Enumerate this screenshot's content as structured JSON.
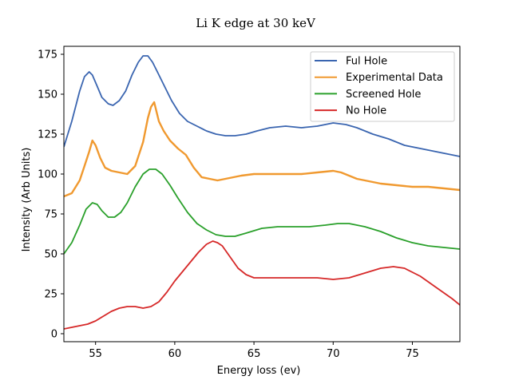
{
  "chart_data": {
    "type": "line",
    "title": "Li K edge at 30 keV",
    "xlabel": "Energy loss (ev)",
    "ylabel": "Intensity (Arb Units)",
    "xlim": [
      53,
      78
    ],
    "ylim": [
      -5,
      180
    ],
    "xticks": [
      55,
      60,
      65,
      70,
      75
    ],
    "yticks": [
      0,
      25,
      50,
      75,
      100,
      125,
      150,
      175
    ],
    "grid": false,
    "legend_position": "top-right",
    "series": [
      {
        "name": "Ful Hole",
        "color": "#3a65b0",
        "x": [
          53.0,
          53.5,
          54.0,
          54.3,
          54.6,
          54.8,
          55.1,
          55.4,
          55.8,
          56.1,
          56.5,
          56.9,
          57.3,
          57.7,
          58.0,
          58.3,
          58.6,
          58.9,
          59.3,
          59.8,
          60.3,
          60.8,
          61.4,
          62.0,
          62.6,
          63.2,
          63.8,
          64.5,
          65.2,
          66.0,
          67.0,
          68.0,
          69.0,
          70.0,
          70.8,
          71.5,
          72.5,
          73.5,
          74.5,
          75.5,
          76.5,
          77.5,
          78.0
        ],
        "y": [
          117,
          133,
          152,
          161,
          164,
          162,
          155,
          148,
          144,
          143,
          146,
          152,
          162,
          170,
          174,
          174,
          170,
          164,
          156,
          146,
          138,
          133,
          130,
          127,
          125,
          124,
          124,
          125,
          127,
          129,
          130,
          129,
          130,
          132,
          131,
          129,
          125,
          122,
          118,
          116,
          114,
          112,
          111
        ]
      },
      {
        "name": "Experimental Data",
        "color": "#f0992f",
        "x": [
          53.0,
          53.5,
          54.0,
          54.3,
          54.6,
          54.8,
          55.0,
          55.3,
          55.6,
          56.0,
          56.5,
          57.0,
          57.5,
          58.0,
          58.3,
          58.5,
          58.7,
          59.0,
          59.3,
          59.7,
          60.2,
          60.7,
          61.2,
          61.7,
          62.2,
          62.7,
          63.2,
          63.7,
          64.2,
          65.0,
          66.0,
          67.0,
          68.0,
          69.0,
          70.0,
          70.5,
          71.0,
          71.5,
          72.0,
          72.5,
          73.0,
          74.0,
          75.0,
          76.0,
          77.0,
          78.0
        ],
        "y": [
          86,
          88,
          96,
          105,
          114,
          121,
          118,
          110,
          104,
          102,
          101,
          100,
          105,
          120,
          135,
          142,
          145,
          133,
          127,
          121,
          116,
          112,
          104,
          98,
          97,
          96,
          97,
          98,
          99,
          100,
          100,
          100,
          100,
          101,
          102,
          101,
          99,
          97,
          96,
          95,
          94,
          93,
          92,
          92,
          91,
          90
        ]
      },
      {
        "name": "Screened Hole",
        "color": "#2aa02b",
        "x": [
          53.0,
          53.5,
          54.0,
          54.4,
          54.8,
          55.1,
          55.4,
          55.8,
          56.2,
          56.6,
          57.0,
          57.5,
          58.0,
          58.4,
          58.8,
          59.2,
          59.7,
          60.2,
          60.8,
          61.4,
          62.0,
          62.6,
          63.2,
          63.8,
          64.5,
          65.5,
          66.5,
          67.5,
          68.5,
          69.5,
          70.3,
          71.0,
          72.0,
          73.0,
          74.0,
          75.0,
          76.0,
          77.0,
          78.0
        ],
        "y": [
          50,
          57,
          68,
          78,
          82,
          81,
          77,
          73,
          73,
          76,
          82,
          92,
          100,
          103,
          103,
          100,
          93,
          85,
          76,
          69,
          65,
          62,
          61,
          61,
          63,
          66,
          67,
          67,
          67,
          68,
          69,
          69,
          67,
          64,
          60,
          57,
          55,
          54,
          53
        ]
      },
      {
        "name": "No Hole",
        "color": "#d62828",
        "x": [
          53.0,
          53.5,
          54.0,
          54.5,
          55.0,
          55.5,
          56.0,
          56.5,
          57.0,
          57.5,
          58.0,
          58.5,
          59.0,
          59.5,
          60.0,
          60.5,
          61.0,
          61.5,
          62.0,
          62.4,
          62.7,
          63.0,
          63.5,
          64.0,
          64.5,
          65.0,
          66.0,
          67.0,
          68.0,
          69.0,
          70.0,
          71.0,
          72.0,
          73.0,
          73.8,
          74.5,
          75.5,
          76.5,
          77.5,
          78.0
        ],
        "y": [
          3,
          4,
          5,
          6,
          8,
          11,
          14,
          16,
          17,
          17,
          16,
          17,
          20,
          26,
          33,
          39,
          45,
          51,
          56,
          58,
          57,
          55,
          48,
          41,
          37,
          35,
          35,
          35,
          35,
          35,
          34,
          35,
          38,
          41,
          42,
          41,
          36,
          29,
          22,
          18
        ]
      }
    ]
  }
}
